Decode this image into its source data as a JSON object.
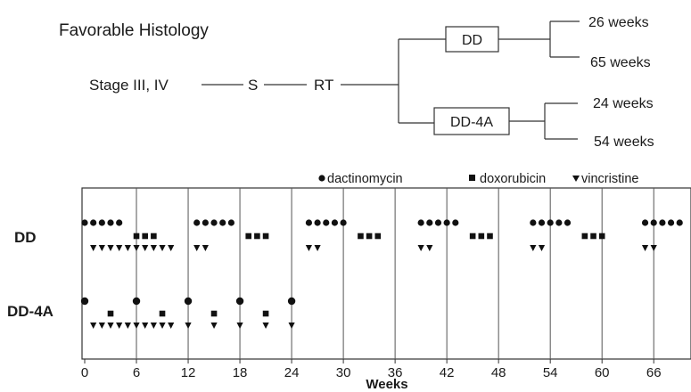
{
  "title": "Favorable Histology",
  "flow": {
    "stage": "Stage III, IV",
    "surgery": "S",
    "radiotherapy": "RT",
    "regimens": [
      {
        "name": "DD",
        "durations": [
          "26 weeks",
          "65 weeks"
        ]
      },
      {
        "name": "DD-4A",
        "durations": [
          "24 weeks",
          "54 weeks"
        ]
      }
    ]
  },
  "legend": [
    {
      "symbol": "circle",
      "label": "dactinomycin"
    },
    {
      "symbol": "square",
      "label": "doxorubicin"
    },
    {
      "symbol": "triangle-down",
      "label": "vincristine"
    }
  ],
  "chart_data": {
    "type": "scatter",
    "xlabel": "Weeks",
    "xlim": [
      0,
      70
    ],
    "xticks": [
      0,
      6,
      12,
      18,
      24,
      30,
      36,
      42,
      48,
      54,
      60,
      66
    ],
    "grid": true,
    "legend_position": "top-right",
    "rows": [
      {
        "name": "DD",
        "series": [
          {
            "name": "dactinomycin",
            "symbol": "circle",
            "x": [
              0,
              1,
              2,
              3,
              4,
              13,
              14,
              15,
              16,
              17,
              26,
              27,
              28,
              29,
              30,
              39,
              40,
              41,
              42,
              43,
              52,
              53,
              54,
              55,
              56,
              65,
              66,
              67,
              68,
              69
            ]
          },
          {
            "name": "doxorubicin",
            "symbol": "square",
            "x": [
              6,
              7,
              8,
              19,
              20,
              21,
              32,
              33,
              34,
              45,
              46,
              47,
              58,
              59,
              60
            ]
          },
          {
            "name": "vincristine",
            "symbol": "triangle-down",
            "x": [
              1,
              2,
              3,
              4,
              5,
              6,
              7,
              8,
              9,
              10,
              13,
              14,
              26,
              27,
              39,
              40,
              52,
              53,
              65,
              66
            ]
          }
        ]
      },
      {
        "name": "DD-4A",
        "series": [
          {
            "name": "dactinomycin",
            "symbol": "circle",
            "x": [
              0,
              6,
              12,
              18,
              24
            ]
          },
          {
            "name": "doxorubicin",
            "symbol": "square",
            "x": [
              3,
              9,
              15,
              21
            ]
          },
          {
            "name": "vincristine",
            "symbol": "triangle-down",
            "x": [
              1,
              2,
              3,
              4,
              5,
              6,
              7,
              8,
              9,
              10,
              12,
              15,
              18,
              21,
              24
            ]
          }
        ]
      }
    ]
  }
}
